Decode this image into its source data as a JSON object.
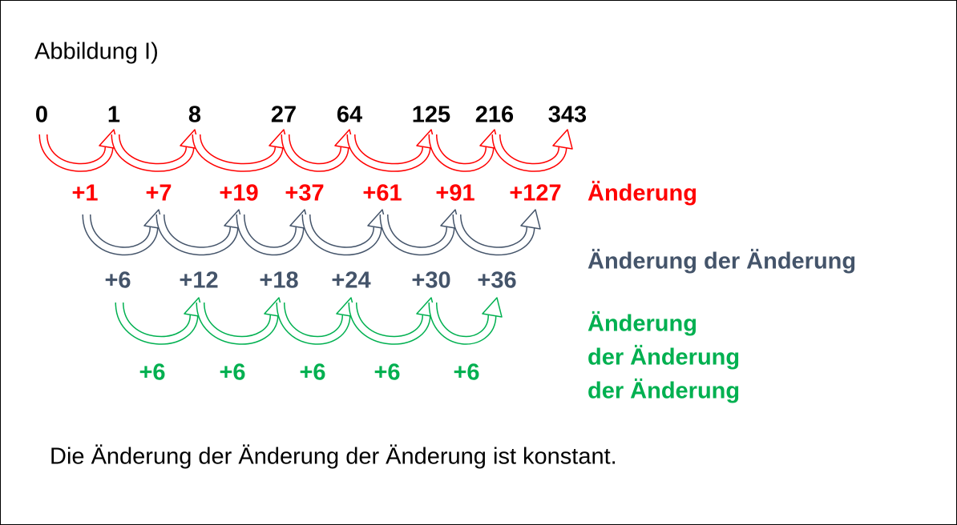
{
  "title": "Abbildung I)",
  "rows": [
    {
      "values": [
        "0",
        "1",
        "8",
        "27",
        "64",
        "125",
        "216",
        "343"
      ]
    },
    {
      "values": [
        "+1",
        "+7",
        "+19",
        "+37",
        "+61",
        "+91",
        "+127"
      ],
      "label": [
        "Änderung"
      ]
    },
    {
      "values": [
        "+6",
        "+12",
        "+18",
        "+24",
        "+30",
        "+36"
      ],
      "label": [
        "Änderung der Änderung"
      ]
    },
    {
      "values": [
        "+6",
        "+6",
        "+6",
        "+6",
        "+6"
      ],
      "label": [
        "Änderung",
        "der Änderung",
        "der Änderung"
      ]
    }
  ],
  "conclusion": "Die Änderung der Änderung der Änderung ist konstant."
}
